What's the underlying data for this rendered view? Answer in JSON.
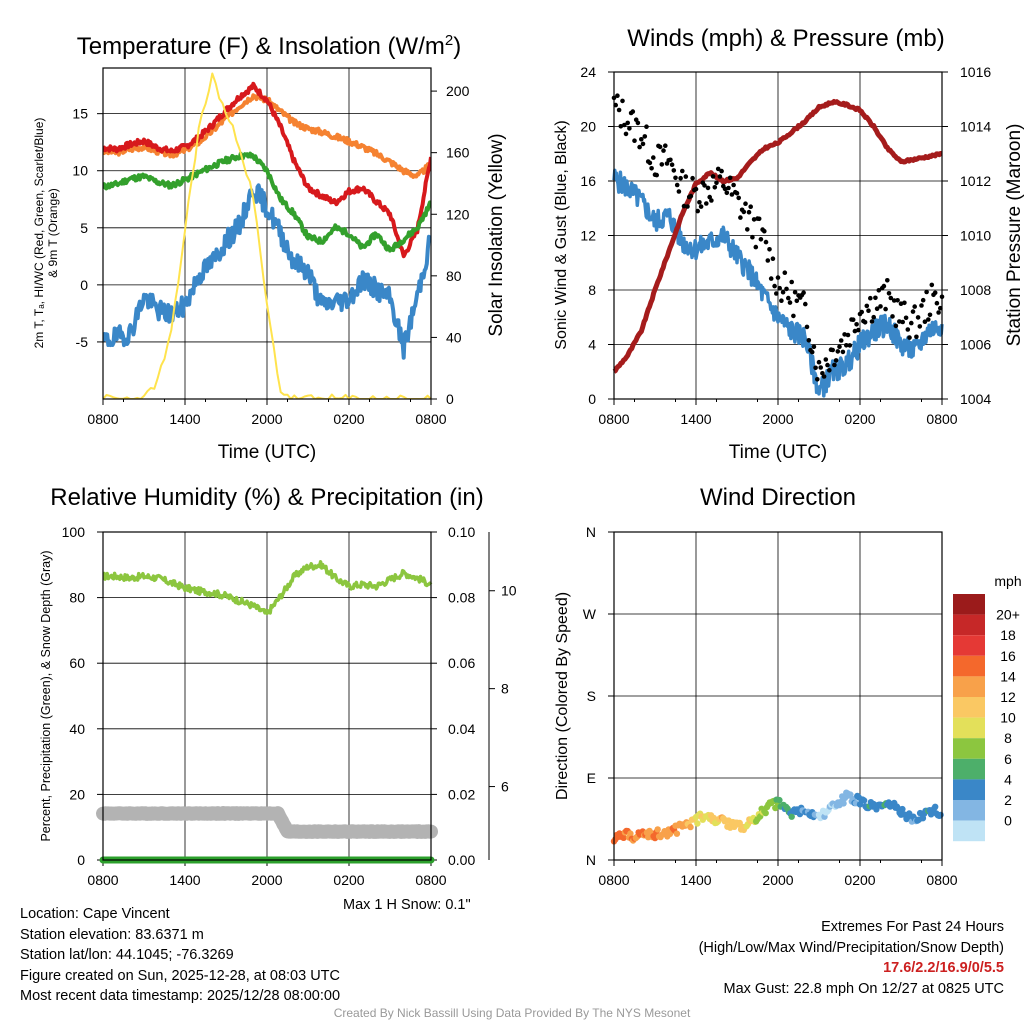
{
  "chart_data": [
    {
      "id": "temp",
      "type": "line",
      "title": "Temperature (F) & Insolation (W/m²)",
      "xlabel": "Time (UTC)",
      "ylabel_lines": [
        "2m T, Tₐ, HI/WC (Red, Green, Scarlet/Blue)",
        "& 9m T (Orange)"
      ],
      "y2label": "Solar Insolation (Yellow)",
      "xticks": [
        "0800",
        "1400",
        "2000",
        "0200",
        "0800"
      ],
      "ylim": [
        -10,
        19
      ],
      "yticks": [
        -5,
        0,
        5,
        10,
        15
      ],
      "y2lim": [
        0,
        215
      ],
      "y2ticks": [
        0,
        40,
        80,
        120,
        160,
        200
      ],
      "series": [
        {
          "name": "9m T",
          "color": "#f58231",
          "axis": "left",
          "x": [
            0,
            1,
            2,
            3,
            4,
            5,
            6,
            7,
            8,
            9,
            10,
            11,
            12,
            13,
            14,
            15,
            16,
            17,
            18,
            19,
            20,
            21,
            22,
            23,
            24
          ],
          "y": [
            11.7,
            11.6,
            11.9,
            12.1,
            11.7,
            11.4,
            11.8,
            12.5,
            13.5,
            14.6,
            15.7,
            16.6,
            16.2,
            15.2,
            14.2,
            13.7,
            13.4,
            13.0,
            12.6,
            12.1,
            11.5,
            10.8,
            10.0,
            9.5,
            10.6
          ]
        },
        {
          "name": "2m T",
          "color": "#d7191c",
          "axis": "left",
          "x": [
            0,
            1,
            2,
            3,
            4,
            5,
            6,
            7,
            8,
            9,
            10,
            11,
            12,
            13,
            14,
            15,
            16,
            17,
            18,
            19,
            20,
            21,
            22,
            23,
            24
          ],
          "y": [
            12.0,
            11.9,
            12.3,
            12.6,
            12.0,
            11.7,
            12.1,
            12.9,
            14.0,
            15.3,
            16.5,
            17.4,
            16.2,
            13.8,
            10.8,
            8.5,
            7.8,
            7.2,
            8.2,
            8.5,
            7.3,
            6.2,
            2.5,
            4.8,
            11.2
          ]
        },
        {
          "name": "Tₐ",
          "color": "#33a02c",
          "axis": "left",
          "x": [
            0,
            1,
            2,
            3,
            4,
            5,
            6,
            7,
            8,
            9,
            10,
            11,
            12,
            13,
            14,
            15,
            16,
            17,
            18,
            19,
            20,
            21,
            22,
            23,
            24
          ],
          "y": [
            8.6,
            8.8,
            9.3,
            9.5,
            9.0,
            8.7,
            9.2,
            9.8,
            10.4,
            10.9,
            11.3,
            11.3,
            10.0,
            7.5,
            6.2,
            4.2,
            3.8,
            5.0,
            4.5,
            3.2,
            4.5,
            3.0,
            4.0,
            5.0,
            7.2
          ]
        },
        {
          "name": "HI/WC",
          "color": "#3a87c8",
          "axis": "left",
          "x": [
            0,
            1,
            2,
            3,
            4,
            5,
            6,
            7,
            8,
            9,
            10,
            11,
            12,
            13,
            14,
            15,
            16,
            17,
            18,
            19,
            20,
            21,
            22,
            23,
            24
          ],
          "y": [
            -5.0,
            -4.6,
            -4.2,
            -1.0,
            -2.2,
            -2.6,
            -1.8,
            0.8,
            2.0,
            3.8,
            5.2,
            8.5,
            6.8,
            4.5,
            2.0,
            1.2,
            -1.8,
            -1.5,
            -1.2,
            0.5,
            -0.4,
            -1.2,
            -5.5,
            -1.0,
            4.2
          ]
        },
        {
          "name": "Solar Insolation",
          "color": "#ffe34d",
          "axis": "right",
          "x": [
            0,
            2,
            3,
            4,
            5,
            6,
            7,
            8,
            9,
            10,
            11,
            12,
            13,
            14,
            16,
            24
          ],
          "y": [
            0,
            0,
            0,
            12,
            42,
            110,
            175,
            210,
            185,
            165,
            130,
            60,
            5,
            0,
            0,
            0
          ]
        }
      ]
    },
    {
      "id": "wind",
      "type": "line",
      "title": "Winds (mph) & Pressure (mb)",
      "xlabel": "Time (UTC)",
      "ylabel": "Sonic Wind & Gust (Blue, Black)",
      "y2label": "Station Pressure (Maroon)",
      "xticks": [
        "0800",
        "1400",
        "2000",
        "0200",
        "0800"
      ],
      "ylim": [
        0,
        24
      ],
      "yticks": [
        0,
        4,
        8,
        12,
        16,
        20,
        24
      ],
      "y2lim": [
        1004,
        1016
      ],
      "y2ticks": [
        1004,
        1006,
        1008,
        1010,
        1012,
        1014,
        1016
      ],
      "series": [
        {
          "name": "Station Pressure",
          "color": "#a51c1c",
          "axis": "right",
          "x": [
            0,
            1,
            2,
            3,
            4,
            5,
            6,
            7,
            8,
            9,
            10,
            11,
            12,
            13,
            14,
            15,
            16,
            17,
            18,
            19,
            20,
            21,
            22,
            23,
            24
          ],
          "y": [
            1005.0,
            1005.6,
            1006.5,
            1008.0,
            1009.4,
            1010.8,
            1011.9,
            1012.3,
            1012.0,
            1012.1,
            1012.7,
            1013.2,
            1013.4,
            1013.8,
            1014.2,
            1014.7,
            1014.9,
            1014.8,
            1014.6,
            1014.0,
            1013.2,
            1012.7,
            1012.8,
            1012.9,
            1013.0
          ]
        },
        {
          "name": "Sonic Wind",
          "color": "#3a87c8",
          "axis": "left",
          "x": [
            0,
            1,
            2,
            3,
            4,
            5,
            6,
            7,
            8,
            9,
            10,
            11,
            12,
            13,
            14,
            15,
            16,
            17,
            18,
            19,
            20,
            21,
            22,
            23,
            24
          ],
          "y": [
            16.2,
            15.5,
            14.5,
            13.0,
            13.5,
            11.5,
            11.0,
            11.5,
            12.0,
            10.5,
            9.2,
            7.5,
            6.0,
            5.0,
            4.5,
            0.5,
            2.0,
            2.5,
            4.0,
            5.0,
            5.5,
            4.0,
            3.5,
            5.0,
            5.5
          ]
        },
        {
          "name": "Gust",
          "color": "#000000",
          "axis": "left",
          "style": "dots",
          "x": [
            0,
            1,
            2,
            3,
            4,
            5,
            6,
            7,
            8,
            9,
            10,
            11,
            12,
            13,
            14,
            15,
            16,
            17,
            18,
            19,
            20,
            21,
            22,
            23,
            24
          ],
          "y": [
            21.5,
            20.5,
            19.5,
            17.5,
            17.5,
            15.5,
            15.0,
            15.5,
            16.0,
            14.5,
            13.0,
            11.5,
            8.5,
            7.5,
            6.5,
            2.0,
            3.5,
            4.5,
            6.5,
            7.0,
            7.5,
            6.0,
            5.5,
            7.0,
            7.5
          ]
        }
      ]
    },
    {
      "id": "rh",
      "type": "line",
      "title": "Relative Humidity (%) & Precipitation (in)",
      "ylabel": "Percent, Precipitation (Green), & Snow Depth (Gray)",
      "xticks": [
        "0800",
        "1400",
        "2000",
        "0200",
        "0800"
      ],
      "ylim": [
        0,
        100
      ],
      "yticks": [
        0,
        20,
        40,
        60,
        80,
        100
      ],
      "y2lim": [
        0,
        0.1
      ],
      "y2ticks": [
        "0.00",
        "0.02",
        "0.04",
        "0.06",
        "0.08",
        "0.10"
      ],
      "y3lim": [
        4.5,
        11.2
      ],
      "y3ticks": [
        6,
        8,
        10
      ],
      "note": "Max 1 H Snow: 0.1\"",
      "series": [
        {
          "name": "Relative Humidity",
          "color": "#8cc63f",
          "axis": "left",
          "x": [
            0,
            1,
            2,
            3,
            4,
            5,
            6,
            7,
            8,
            9,
            10,
            11,
            12,
            13,
            14,
            15,
            16,
            17,
            18,
            19,
            20,
            21,
            22,
            23,
            24
          ],
          "y": [
            86.5,
            86.5,
            86.0,
            86.5,
            86.0,
            84.5,
            83.0,
            82.0,
            81.5,
            80.5,
            79.0,
            77.5,
            75.0,
            80.5,
            86.5,
            89.5,
            90.0,
            86.0,
            83.5,
            84.0,
            83.5,
            85.5,
            87.5,
            86.0,
            84.0
          ]
        },
        {
          "name": "Precipitation",
          "color": "#2ca02c",
          "axis": "right",
          "x": [
            0,
            24
          ],
          "y": [
            0,
            0
          ]
        },
        {
          "name": "Snow Depth",
          "color": "#b3b3b3",
          "axis": "third",
          "x": [
            0,
            12,
            12.8,
            13.5,
            24
          ],
          "y": [
            5.45,
            5.45,
            5.45,
            5.08,
            5.08
          ]
        }
      ]
    },
    {
      "id": "wdir",
      "type": "scatter",
      "title": "Wind Direction",
      "ylabel": "Direction (Colored By Speed)",
      "xticks": [
        "0800",
        "1400",
        "2000",
        "0200",
        "0800"
      ],
      "yticks": [
        "N",
        "E",
        "S",
        "W",
        "N"
      ],
      "legend_title": "mph",
      "legend_labels": [
        "20+",
        "18",
        "16",
        "14",
        "12",
        "10",
        "8",
        "6",
        "4",
        "2",
        "0"
      ],
      "legend_colors": [
        "#9b1b1b",
        "#c62828",
        "#e53935",
        "#f4682c",
        "#f8a14a",
        "#fac863",
        "#e3e05a",
        "#8cc63f",
        "#4daf6a",
        "#3a87c8",
        "#83b6e3",
        "#bfe3f5"
      ],
      "points": {
        "x": [
          0,
          0.5,
          1,
          1.5,
          2,
          2.5,
          3,
          3.5,
          4,
          4.5,
          5,
          5.5,
          6,
          6.5,
          7,
          7.5,
          8,
          8.5,
          9,
          9.5,
          10,
          10.5,
          11,
          11.5,
          12,
          12.5,
          13,
          13.5,
          14,
          14.5,
          15,
          15.5,
          16,
          16.5,
          17,
          17.5,
          18,
          18.5,
          19,
          19.5,
          20,
          20.5,
          21,
          21.5,
          22,
          22.5,
          23,
          23.5,
          24
        ],
        "y": [
          25,
          26,
          27,
          26,
          27,
          28,
          29,
          30,
          31,
          33,
          37,
          40,
          44,
          48,
          45,
          44,
          42,
          40,
          38,
          34,
          42,
          47,
          55,
          60,
          62,
          57,
          50,
          52,
          55,
          50,
          48,
          52,
          58,
          62,
          70,
          68,
          64,
          62,
          58,
          56,
          60,
          58,
          52,
          48,
          46,
          48,
          52,
          55,
          52
        ],
        "speed": [
          17,
          17,
          16,
          16,
          16,
          16,
          16,
          16,
          15,
          16,
          15,
          14,
          12,
          12,
          12,
          12,
          14,
          13,
          13,
          12,
          12,
          10,
          10,
          9,
          8,
          6,
          6,
          5,
          4,
          5,
          1,
          2,
          2,
          3,
          3,
          4,
          5,
          5,
          6,
          5,
          6,
          6,
          5,
          4,
          4,
          5,
          6,
          5,
          6
        ]
      }
    }
  ],
  "info": {
    "location": "Location: Cape Vincent",
    "elevation": "Station elevation: 83.6371 m",
    "latlon": "Station lat/lon: 44.1045; -76.3269",
    "created": "Figure created on Sun, 2025-12-28, at 08:03 UTC",
    "latest": "Most recent data timestamp: 2025/12/28 08:00:00"
  },
  "extremes": {
    "title": "Extremes For Past 24 Hours",
    "subtitle": "(High/Low/Max Wind/Precipitation/Snow Depth)",
    "values": "17.6/2.2/16.9/0/5.5",
    "gust": "Max Gust: 22.8 mph On 12/27 at 0825 UTC"
  },
  "credit": "Created By Nick Bassill Using Data Provided By The NYS Mesonet"
}
